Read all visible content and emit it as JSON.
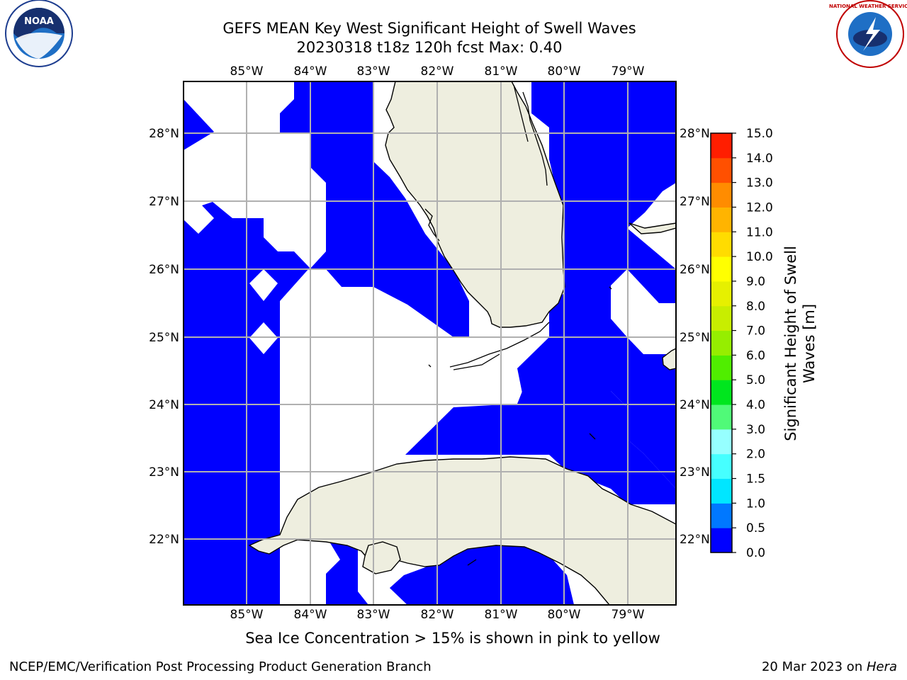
{
  "header": {
    "title_line1": "GEFS MEAN Key West Significant Height of Swell Waves",
    "title_line2": "20230318 t18z 120h fcst   Max: 0.40"
  },
  "map": {
    "lon_labels": [
      "85°W",
      "84°W",
      "83°W",
      "82°W",
      "81°W",
      "80°W",
      "79°W"
    ],
    "lat_labels": [
      "28°N",
      "27°N",
      "26°N",
      "25°N",
      "24°N",
      "23°N",
      "22°N"
    ],
    "colors": {
      "water_field": "#0000ff",
      "land": "#eeeedf",
      "grid": "#b0b0b0"
    },
    "caption": "Sea Ice Concentration > 15% is shown in pink to yellow"
  },
  "colorbar": {
    "title_line1": "Significant Height of Swell",
    "title_line2": "Waves [m]",
    "tick_labels": [
      "0.0",
      "0.5",
      "1.0",
      "1.5",
      "2.0",
      "3.0",
      "4.0",
      "5.0",
      "6.0",
      "7.0",
      "8.0",
      "9.0",
      "10.0",
      "11.0",
      "12.0",
      "13.0",
      "14.0",
      "15.0"
    ],
    "colors": [
      "#0000ff",
      "#0078ff",
      "#00e6ff",
      "#46ffff",
      "#96ffff",
      "#50fa78",
      "#00e61e",
      "#50ee00",
      "#96ee00",
      "#c8ee00",
      "#e6f000",
      "#ffff00",
      "#ffdc00",
      "#ffb400",
      "#ff8c00",
      "#ff5000",
      "#ff1e00",
      "#ff0000"
    ]
  },
  "logos": {
    "left": "NOAA",
    "right": "NATIONAL WEATHER SERVICE"
  },
  "footer": {
    "left": "NCEP/EMC/Verification Post Processing Product Generation Branch",
    "right_date": "20 Mar 2023 on ",
    "right_host": "Hera"
  }
}
